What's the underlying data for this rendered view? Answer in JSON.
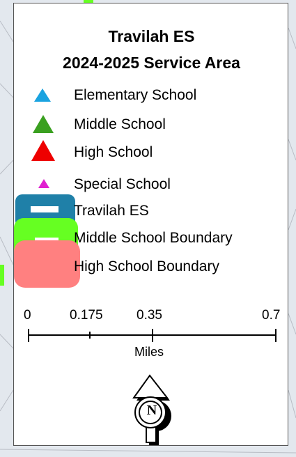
{
  "map": {
    "title_line1": "Travilah ES",
    "title_line2": "2024-2025 Service Area"
  },
  "legend": {
    "items": [
      {
        "label": "Elementary School",
        "symbol": "triangle-icon",
        "color": "#1aa3e0"
      },
      {
        "label": "Middle School",
        "symbol": "triangle-icon",
        "color": "#3aa020"
      },
      {
        "label": "High School",
        "symbol": "triangle-icon",
        "color": "#ee0000"
      },
      {
        "label": "Special School",
        "symbol": "triangle-icon",
        "color": "#e020d0"
      },
      {
        "label": "Travilah ES",
        "symbol": "boundary-swatch",
        "color": "#1f80a8"
      },
      {
        "label": "Middle School Boundary",
        "symbol": "boundary-swatch",
        "color": "#66ff22"
      },
      {
        "label": "High School Boundary",
        "symbol": "boundary-swatch",
        "color": "#ff8080"
      }
    ]
  },
  "scale_bar": {
    "ticks": [
      "0",
      "0.175",
      "0.35",
      "0.7"
    ],
    "unit": "Miles"
  },
  "north_arrow": {
    "letter": "N"
  }
}
